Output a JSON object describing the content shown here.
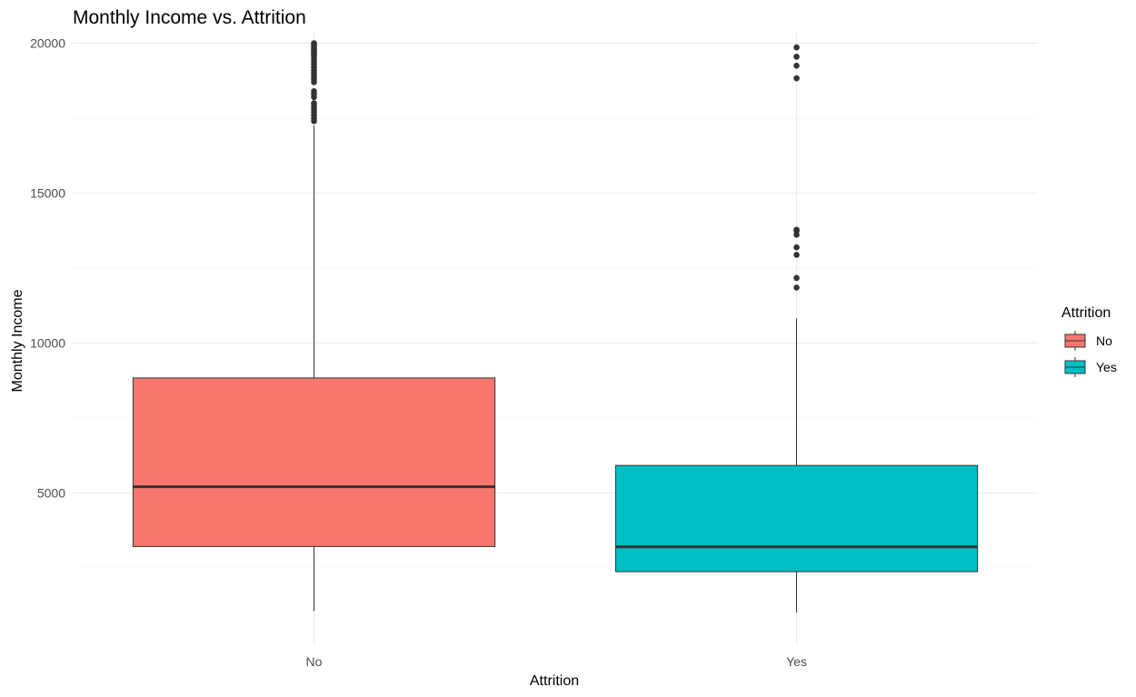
{
  "chart_data": {
    "type": "boxplot",
    "title": "Monthly Income vs. Attrition",
    "xlabel": "Attrition",
    "ylabel": "Monthly Income",
    "categories": [
      "No",
      "Yes"
    ],
    "ylim": [
      -50,
      20350
    ],
    "yticks": [
      5000,
      10000,
      15000,
      20000
    ],
    "ytick_labels": [
      "5000",
      "10000",
      "15000",
      "20000"
    ],
    "grid": true,
    "legend": {
      "title": "Attrition",
      "position": "right",
      "entries": [
        "No",
        "Yes"
      ]
    },
    "colors": {
      "No": "#F8766D",
      "Yes": "#00BFC4",
      "outline": "#333333"
    },
    "boxes": [
      {
        "category": "No",
        "whisker_low": 1051,
        "q1": 3211,
        "median": 5204,
        "q3": 8834,
        "whisker_high": 17250,
        "outliers": [
          17400,
          17500,
          17600,
          17700,
          17800,
          17900,
          18000,
          18200,
          18300,
          18400,
          18700,
          18800,
          18900,
          19000,
          19100,
          19200,
          19300,
          19400,
          19500,
          19600,
          19650,
          19700,
          19750,
          19800,
          19850,
          19900,
          19950,
          19999
        ]
      },
      {
        "category": "Yes",
        "whisker_low": 1009,
        "q1": 2373,
        "median": 3202,
        "q3": 5916,
        "whisker_high": 10820,
        "outliers": [
          11850,
          12170,
          12940,
          13190,
          13610,
          13740,
          13780,
          18830,
          19250,
          19550,
          19860
        ]
      }
    ]
  }
}
